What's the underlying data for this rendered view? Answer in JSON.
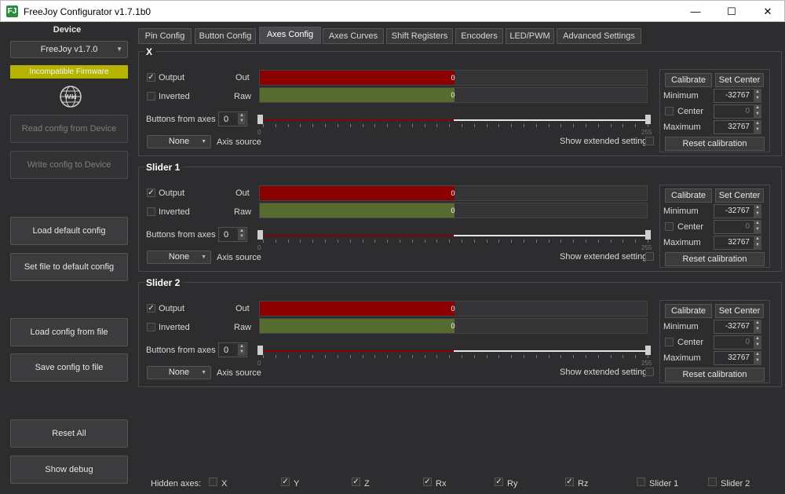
{
  "window": {
    "title": "FreeJoy Configurator v1.7.1b0",
    "icon_letter": "FJ",
    "minimize": "—",
    "maximize": "☐",
    "close": "✕"
  },
  "sidebar": {
    "title": "Device",
    "device_value": "FreeJoy v1.7.0",
    "firmware_status": "Incompatible Firmware",
    "wiki_label": "Wiki",
    "buttons": {
      "read": "Read config from Device",
      "write": "Write config to Device",
      "load_default": "Load default config",
      "set_default": "Set file to default config",
      "load_file": "Load config from file",
      "save_file": "Save config to file",
      "reset": "Reset All",
      "debug": "Show debug"
    }
  },
  "tabs": [
    "Pin Config",
    "Button Config",
    "Axes Config",
    "Axes Curves",
    "Shift Registers",
    "Encoders",
    "LED/PWM",
    "Advanced Settings"
  ],
  "active_tab": "Axes Config",
  "labels": {
    "output": "Output",
    "inverted": "Inverted",
    "out": "Out",
    "raw": "Raw",
    "buttons_from_axes": "Buttons from axes",
    "axis_source": "Axis source",
    "show_extended": "Show extended settings",
    "calibrate": "Calibrate",
    "set_center": "Set Center",
    "minimum": "Minimum",
    "center": "Center",
    "maximum": "Maximum",
    "reset_calibration": "Reset calibration",
    "slider_min": "0",
    "slider_max": "255",
    "check": "✓"
  },
  "axes": [
    {
      "name": "X",
      "output_checked": true,
      "inverted": false,
      "out_value": "0",
      "raw_value": "0",
      "buttons": "0",
      "source": "None",
      "minimum": "-32767",
      "center": "0",
      "maximum": "32767",
      "out_fill": 0.5,
      "raw_fill": 0.5
    },
    {
      "name": "Slider 1",
      "output_checked": true,
      "inverted": false,
      "out_value": "0",
      "raw_value": "0",
      "buttons": "0",
      "source": "None",
      "minimum": "-32767",
      "center": "0",
      "maximum": "32767",
      "out_fill": 0.5,
      "raw_fill": 0.5
    },
    {
      "name": "Slider 2",
      "output_checked": true,
      "inverted": false,
      "out_value": "0",
      "raw_value": "0",
      "buttons": "0",
      "source": "None",
      "minimum": "-32767",
      "center": "0",
      "maximum": "32767",
      "out_fill": 0.5,
      "raw_fill": 0.5
    }
  ],
  "footer": {
    "label": "Hidden axes:",
    "items": [
      {
        "name": "X",
        "checked": false
      },
      {
        "name": "Y",
        "checked": true
      },
      {
        "name": "Z",
        "checked": true
      },
      {
        "name": "Rx",
        "checked": true
      },
      {
        "name": "Ry",
        "checked": true
      },
      {
        "name": "Rz",
        "checked": true
      },
      {
        "name": "Slider 1",
        "checked": false
      },
      {
        "name": "Slider 2",
        "checked": false
      }
    ]
  },
  "colors": {
    "out_bar": "#8b0000",
    "raw_bar": "#556b2f",
    "firmware_badge": "#b6b400"
  }
}
